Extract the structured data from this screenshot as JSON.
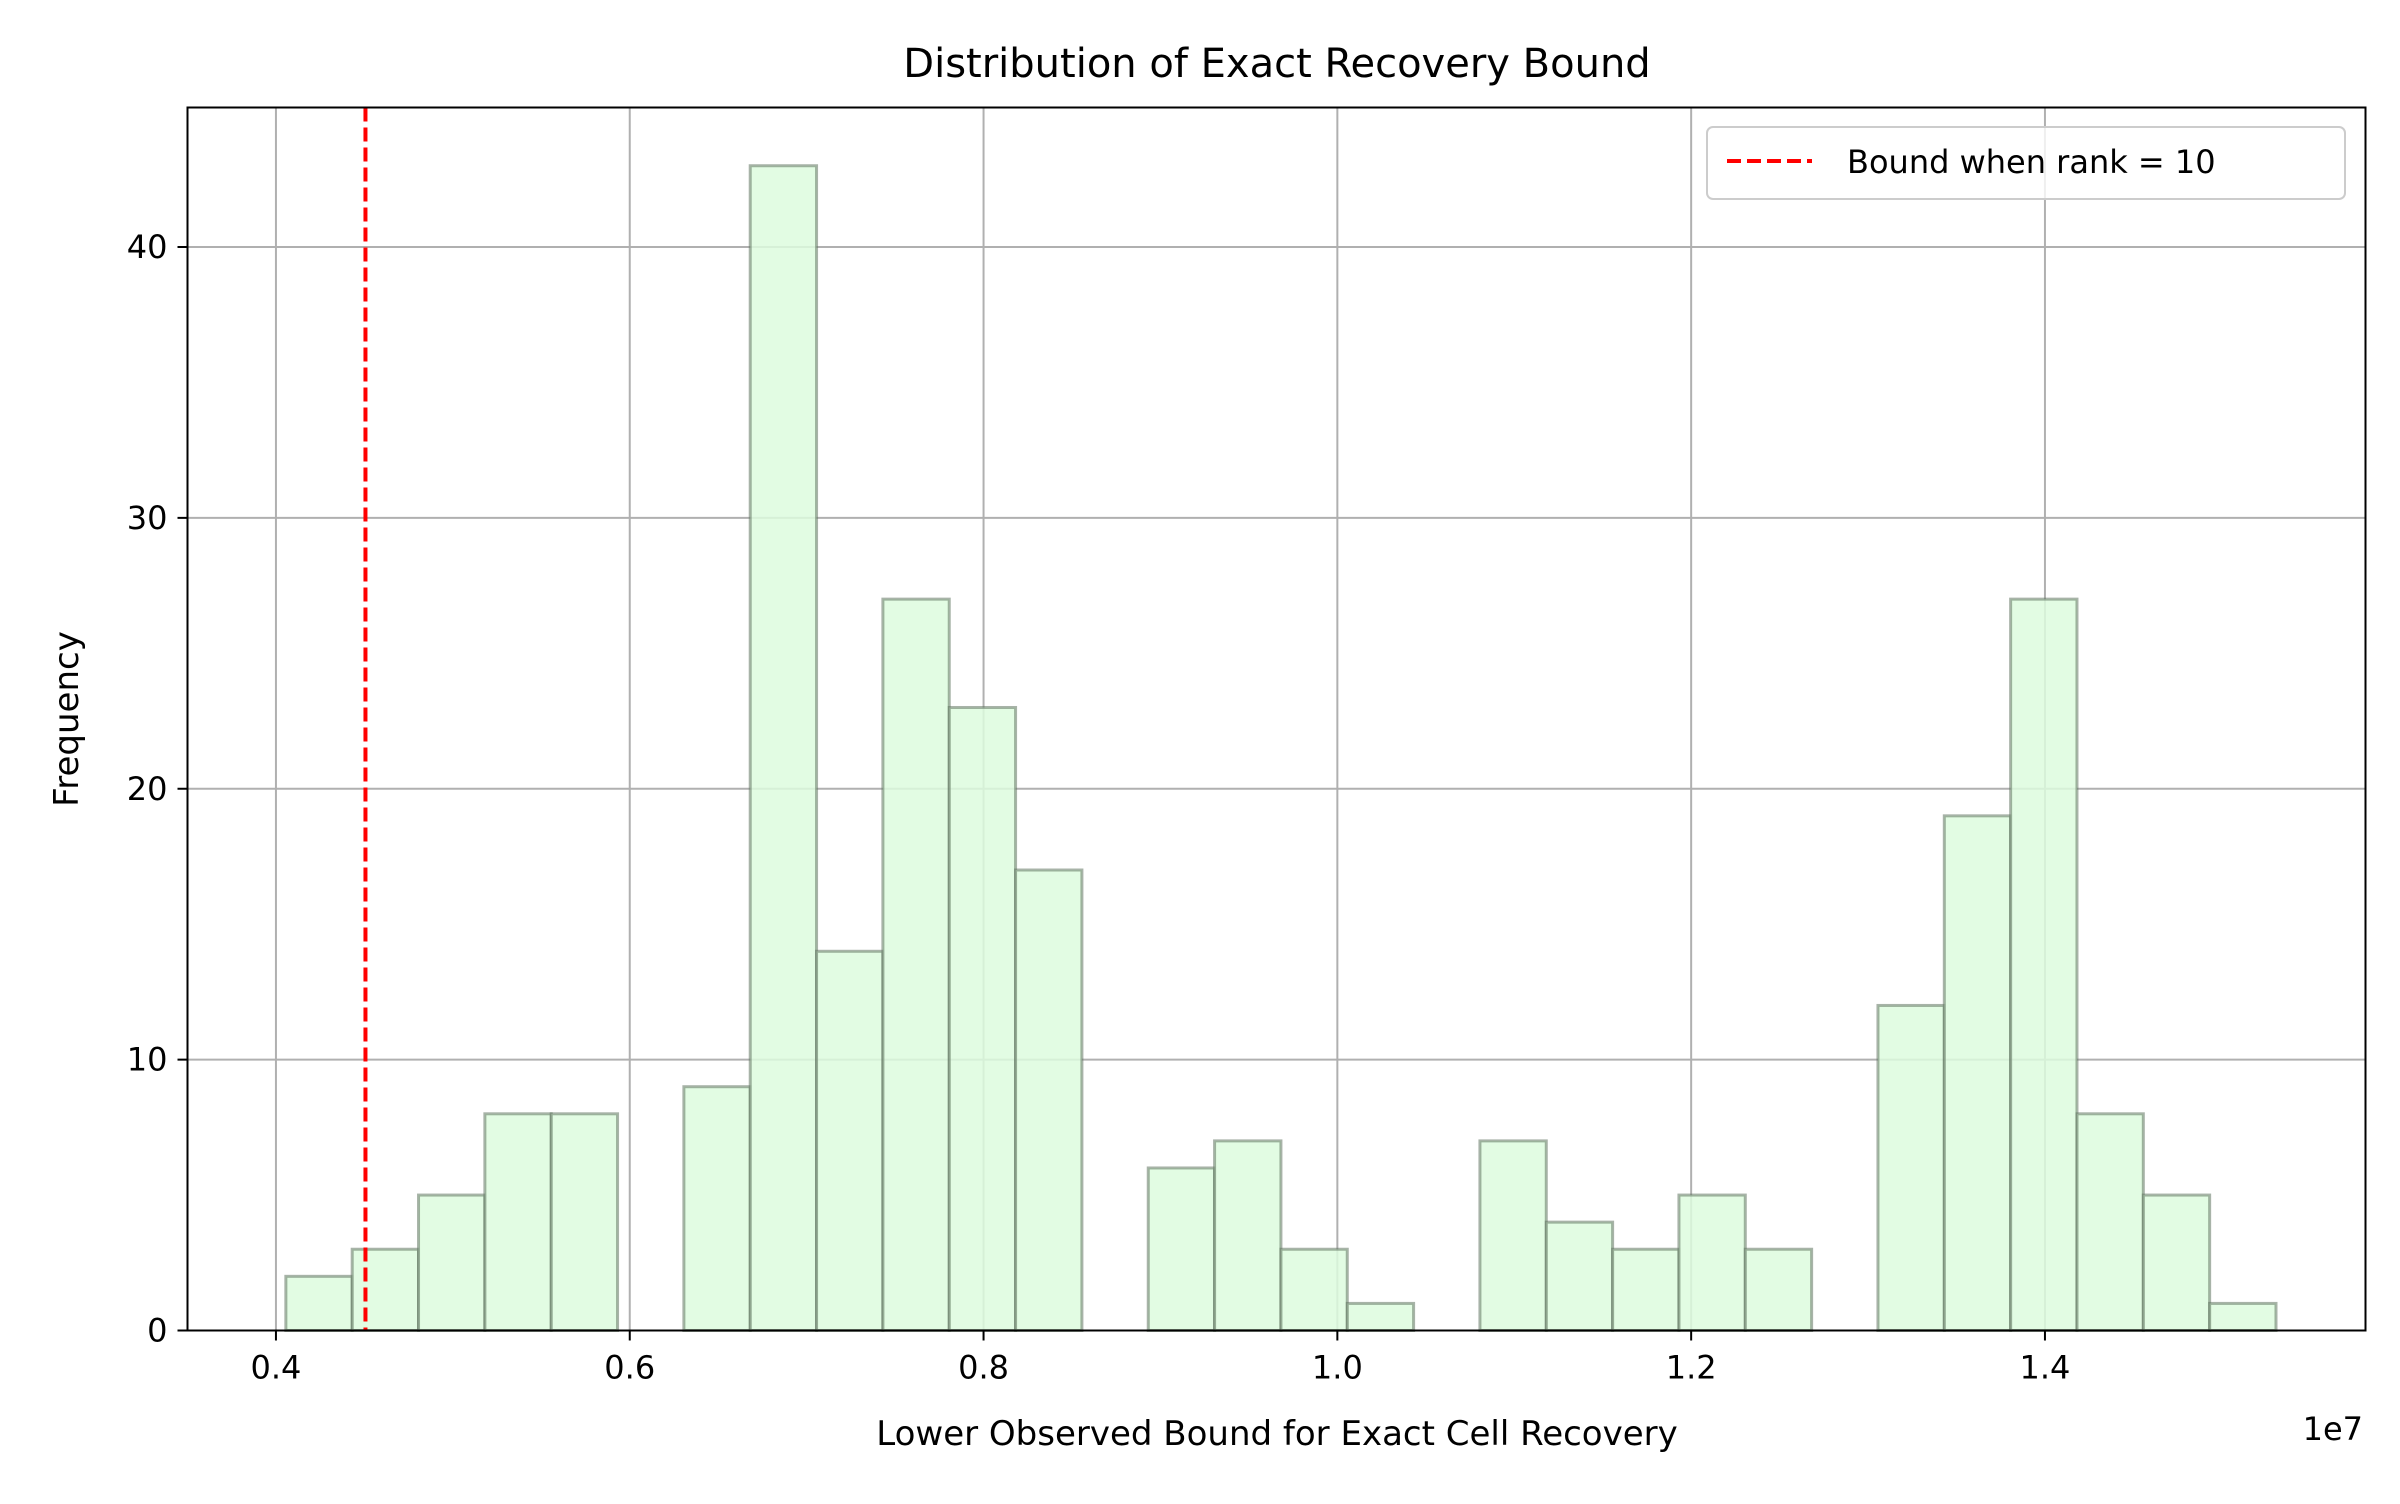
{
  "chart_data": {
    "type": "bar",
    "title": "Distribution of Exact Recovery Bound",
    "xlabel": "Lower Observed Bound for Exact Cell Recovery",
    "ylabel": "Frequency",
    "x_offset_label": "1e7",
    "xlim": [
      0.35,
      1.5812
    ],
    "ylim": [
      0,
      45.15
    ],
    "grid": true,
    "legend_position": "top-right",
    "x_ticks": [
      {
        "value": 0.4,
        "label": "0.4"
      },
      {
        "value": 0.6,
        "label": "0.6"
      },
      {
        "value": 0.8,
        "label": "0.8"
      },
      {
        "value": 1.0,
        "label": "1.0"
      },
      {
        "value": 1.2,
        "label": "1.2"
      },
      {
        "value": 1.4,
        "label": "1.4"
      }
    ],
    "y_ticks": [
      {
        "value": 0,
        "label": "0"
      },
      {
        "value": 10,
        "label": "10"
      },
      {
        "value": 20,
        "label": "20"
      },
      {
        "value": 30,
        "label": "30"
      },
      {
        "value": 40,
        "label": "40"
      }
    ],
    "bin_edges": [
      0.4056,
      0.4431,
      0.4806,
      0.5181,
      0.5556,
      0.5931,
      0.6306,
      0.6681,
      0.7056,
      0.7431,
      0.7806,
      0.8181,
      0.8556,
      0.8931,
      0.9306,
      0.9681,
      1.0056,
      1.0431,
      1.0806,
      1.1181,
      1.1556,
      1.1931,
      1.2306,
      1.2681,
      1.3056,
      1.3431,
      1.3806,
      1.4181,
      1.4556,
      1.4931,
      1.5306
    ],
    "counts": [
      2,
      3,
      5,
      8,
      8,
      0,
      9,
      43,
      14,
      27,
      23,
      17,
      0,
      6,
      7,
      3,
      1,
      0,
      7,
      4,
      3,
      5,
      3,
      0,
      12,
      19,
      27,
      8,
      5,
      1
    ],
    "bar_fill": "#ddfcde",
    "bar_edge": "#9fb29f",
    "grid_color": "#b0b0b0",
    "reference_line": {
      "x": 0.4506,
      "color": "#ff0000",
      "style": "dashed",
      "label": "Bound when rank = 10"
    }
  }
}
